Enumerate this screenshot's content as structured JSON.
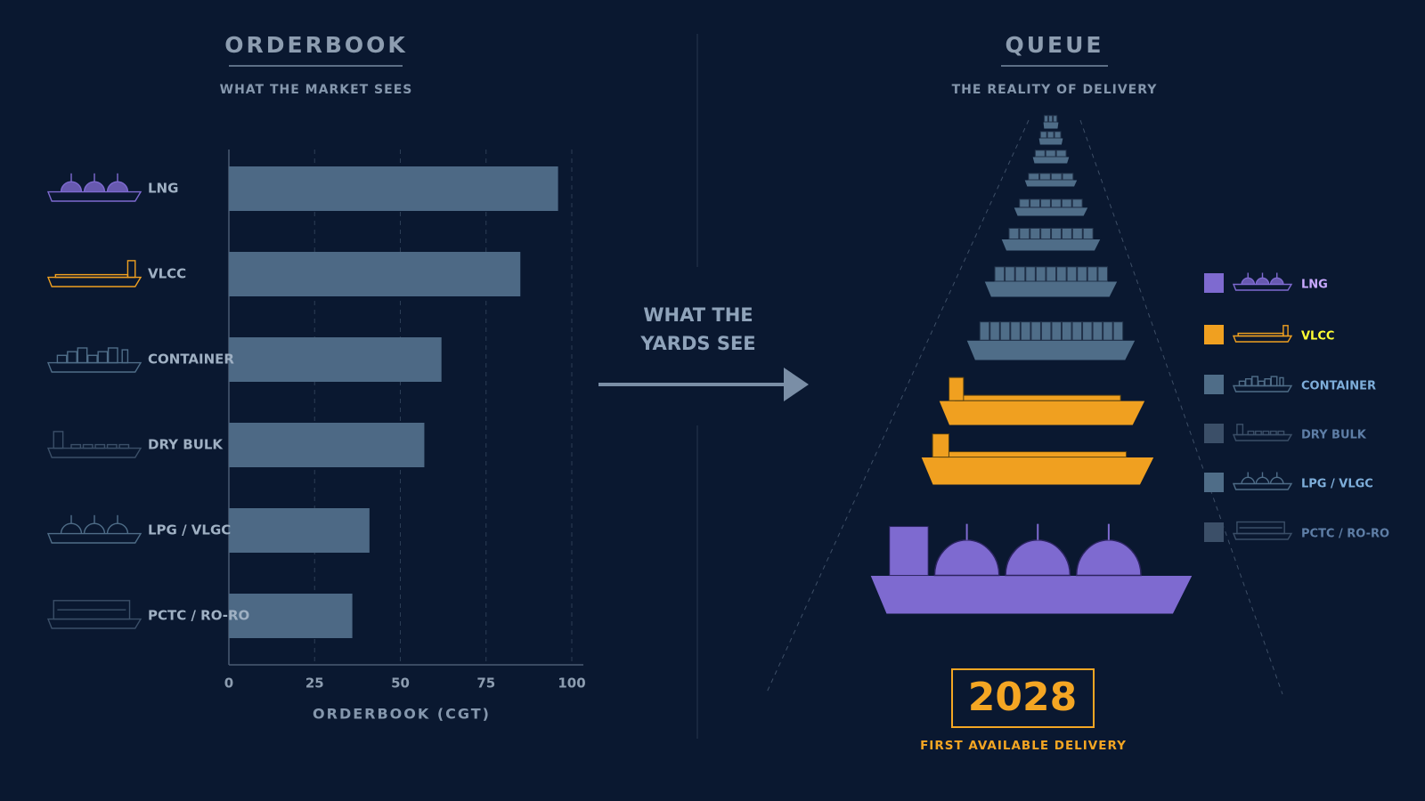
{
  "chart_data": {
    "type": "bar",
    "orientation": "horizontal",
    "title": "ORDERBOOK",
    "subtitle": "WHAT THE MARKET SEES",
    "categories": [
      "LNG",
      "VLCC",
      "CONTAINER",
      "DRY BULK",
      "LPG / VLGC",
      "PCTC / RO-RO"
    ],
    "values": [
      96,
      85,
      62,
      57,
      41,
      36
    ],
    "color": "#4d6985",
    "xlabel": "ORDERBOOK (CGT)",
    "xlim": [
      0,
      100
    ],
    "xticks": [
      0,
      25,
      50,
      75,
      100
    ],
    "grid": true
  },
  "transition_label": [
    "WHAT THE",
    "YARDS SEE"
  ],
  "queue": {
    "title": "QUEUE",
    "subtitle": "THE REALITY OF DELIVERY",
    "legend": [
      {
        "name": "LNG",
        "color": "#7e6ad0"
      },
      {
        "name": "VLCC",
        "color": "#f0a020"
      },
      {
        "name": "CONTAINER",
        "color": "#4f6d88"
      },
      {
        "name": "DRY BULK",
        "color": "#3b4f68"
      },
      {
        "name": "LPG / VLGC",
        "color": "#4f6d88"
      },
      {
        "name": "PCTC / RO-RO",
        "color": "#3b4f68"
      }
    ]
  },
  "delivery": {
    "year": "2028",
    "caption": "FIRST AVAILABLE DELIVERY",
    "color": "#f4a623"
  }
}
